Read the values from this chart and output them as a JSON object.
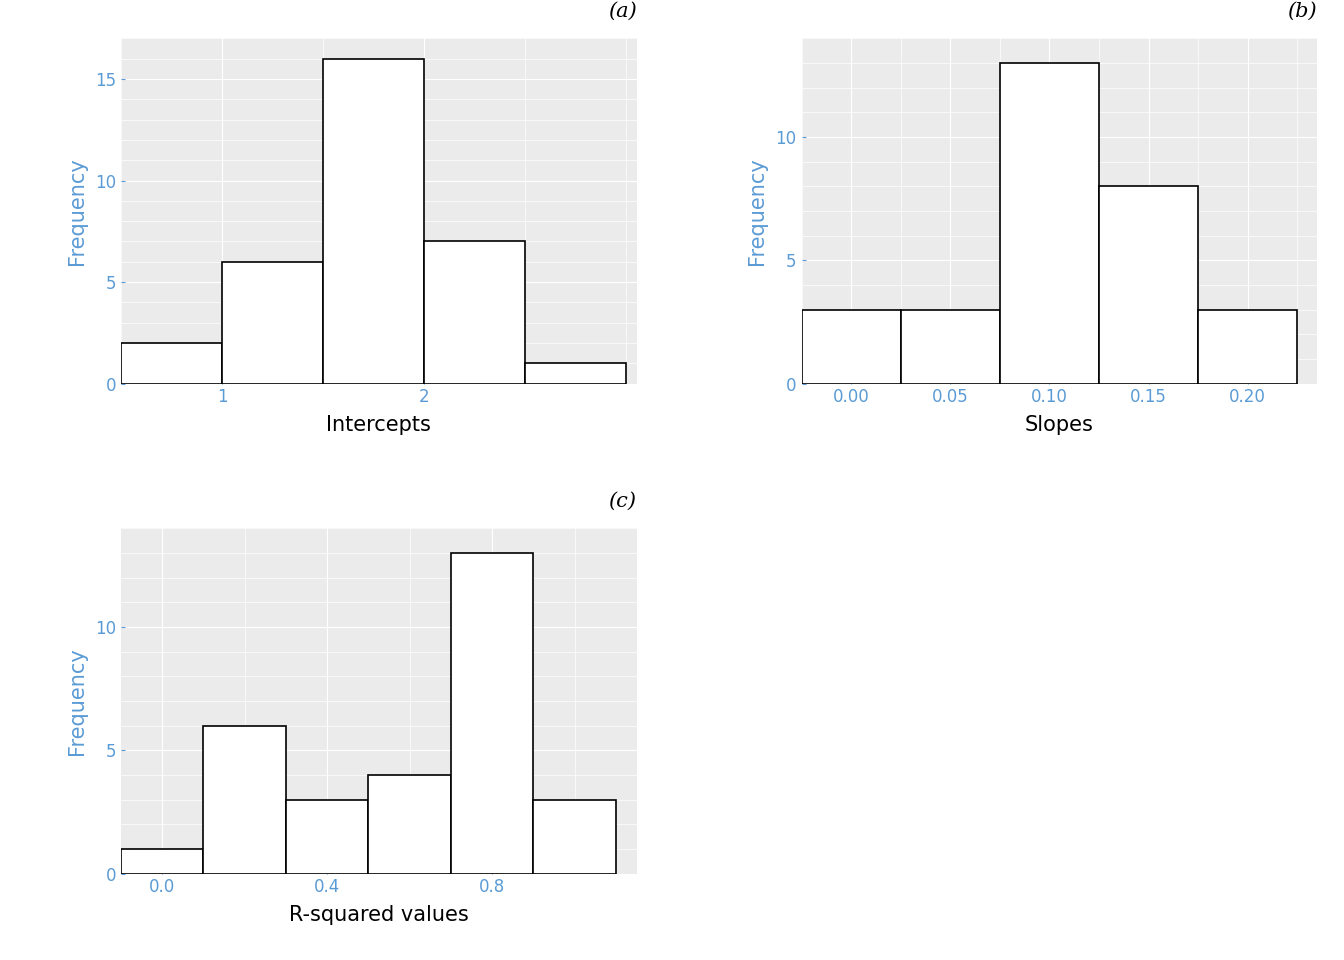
{
  "panel_a": {
    "label": "(a)",
    "xlabel": "Intercepts",
    "bin_edges": [
      0.5,
      1.0,
      1.5,
      2.0,
      2.5,
      3.0
    ],
    "counts": [
      2,
      6,
      16,
      7,
      1
    ],
    "yticks": [
      0,
      5,
      10,
      15
    ],
    "xticks": [
      1,
      2
    ],
    "xticklabels": [
      "1",
      "2"
    ],
    "ylim": [
      0,
      17
    ],
    "xlim": [
      0.5,
      3.05
    ]
  },
  "panel_b": {
    "label": "(b)",
    "xlabel": "Slopes",
    "bin_edges": [
      -0.025,
      0.025,
      0.075,
      0.125,
      0.175,
      0.225
    ],
    "counts": [
      3,
      3,
      13,
      8,
      3
    ],
    "yticks": [
      0,
      5,
      10
    ],
    "xticks": [
      0.0,
      0.05,
      0.1,
      0.15,
      0.2
    ],
    "xticklabels": [
      "0.00",
      "0.05",
      "0.10",
      "0.15",
      "0.20"
    ],
    "ylim": [
      0,
      14
    ],
    "xlim": [
      -0.025,
      0.235
    ]
  },
  "panel_c": {
    "label": "(c)",
    "xlabel": "R-squared values",
    "bin_edges": [
      -0.1,
      0.1,
      0.3,
      0.5,
      0.7,
      0.9,
      1.1
    ],
    "counts": [
      1,
      6,
      3,
      4,
      13,
      3
    ],
    "yticks": [
      0,
      5,
      10
    ],
    "xticks": [
      0.0,
      0.4,
      0.8
    ],
    "xticklabels": [
      "0.0",
      "0.4",
      "0.8"
    ],
    "ylim": [
      0,
      14
    ],
    "xlim": [
      -0.1,
      1.15
    ]
  },
  "bg_color": "#ebebeb",
  "bar_facecolor": "white",
  "bar_edgecolor": "black",
  "ylabel": "Frequency",
  "ylabel_color": "#5b9bd5",
  "tick_color": "#5b9bd5",
  "xlabel_color": "black",
  "label_fontsize": 15,
  "tick_fontsize": 12,
  "panel_label_fontsize": 15,
  "bar_linewidth": 1.2,
  "grid_color": "white",
  "grid_linewidth": 0.8,
  "minor_grid_linewidth": 0.5
}
